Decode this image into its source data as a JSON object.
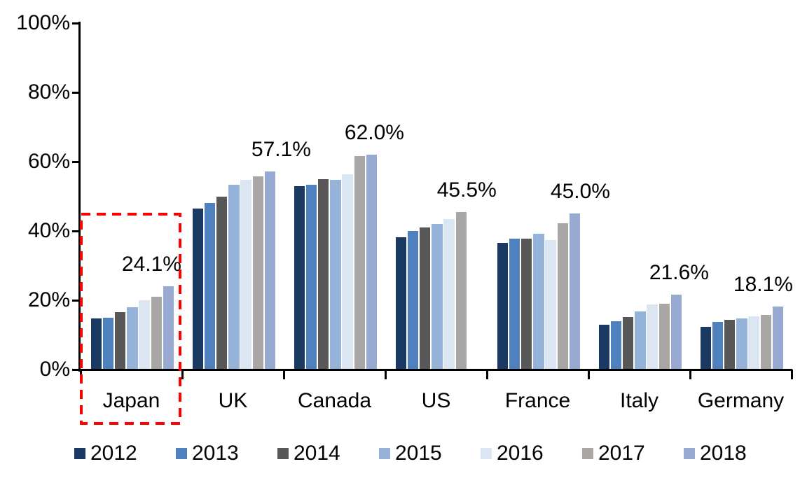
{
  "chart_data": {
    "type": "bar",
    "title": "",
    "categories": [
      "Japan",
      "UK",
      "Canada",
      "US",
      "France",
      "Italy",
      "Germany"
    ],
    "series": [
      {
        "name": "2012",
        "color": "#1B3A63",
        "values": [
          14.7,
          46.4,
          53.0,
          38.1,
          36.5,
          13.0,
          12.4
        ]
      },
      {
        "name": "2013",
        "color": "#4E81BE",
        "values": [
          15.0,
          48.0,
          53.4,
          40.0,
          37.7,
          13.9,
          13.7
        ]
      },
      {
        "name": "2014",
        "color": "#585858",
        "values": [
          16.5,
          50.0,
          55.0,
          41.0,
          37.7,
          15.1,
          14.3
        ]
      },
      {
        "name": "2015",
        "color": "#95B3D9",
        "values": [
          17.9,
          53.3,
          54.7,
          42.0,
          39.3,
          16.7,
          14.7
        ]
      },
      {
        "name": "2016",
        "color": "#DCE6F2",
        "values": [
          20.0,
          54.8,
          56.3,
          43.5,
          37.4,
          18.8,
          15.3
        ]
      },
      {
        "name": "2017",
        "color": "#A8A7A6",
        "values": [
          21.0,
          55.7,
          61.6,
          45.5,
          42.3,
          19.0,
          15.8
        ]
      },
      {
        "name": "2018",
        "color": "#98AAD2",
        "values": [
          24.1,
          57.1,
          62.0,
          null,
          45.0,
          21.6,
          18.1
        ]
      }
    ],
    "annotations": [
      {
        "category": "Japan",
        "text": "24.1%"
      },
      {
        "category": "UK",
        "text": "57.1%"
      },
      {
        "category": "Canada",
        "text": "62.0%"
      },
      {
        "category": "US",
        "text": "45.5%"
      },
      {
        "category": "France",
        "text": "45.0%"
      },
      {
        "category": "Italy",
        "text": "21.6%"
      },
      {
        "category": "Germany",
        "text": "18.1%"
      }
    ],
    "y_axis": {
      "tick_labels": [
        "0%",
        "20%",
        "40%",
        "60%",
        "80%",
        "100%"
      ],
      "tick_values": [
        0,
        20,
        40,
        60,
        80,
        100
      ],
      "min": 0,
      "max": 100,
      "grid": false
    },
    "legend": {
      "position": "bottom",
      "entries": [
        "2012",
        "2013",
        "2014",
        "2015",
        "2016",
        "2017",
        "2018"
      ]
    },
    "highlight": {
      "category": "Japan",
      "shape": "dashed-rectangle",
      "color": "#FF0000"
    },
    "text_color": "#000000",
    "axis_color": "#000000",
    "background": "#FFFFFF"
  }
}
